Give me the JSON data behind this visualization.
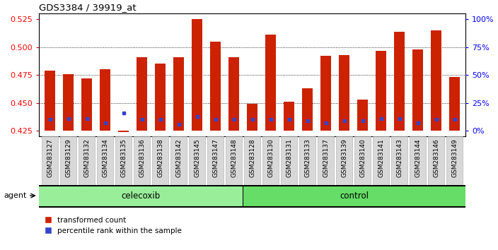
{
  "title": "GDS3384 / 39919_at",
  "samples": [
    "GSM283127",
    "GSM283129",
    "GSM283132",
    "GSM283134",
    "GSM283135",
    "GSM283136",
    "GSM283138",
    "GSM283142",
    "GSM283145",
    "GSM283147",
    "GSM283148",
    "GSM283128",
    "GSM283130",
    "GSM283131",
    "GSM283133",
    "GSM283137",
    "GSM283139",
    "GSM283140",
    "GSM283141",
    "GSM283143",
    "GSM283144",
    "GSM283146",
    "GSM283149"
  ],
  "bar_tops": [
    0.479,
    0.476,
    0.472,
    0.48,
    0.4235,
    0.491,
    0.485,
    0.491,
    0.525,
    0.505,
    0.491,
    0.449,
    0.511,
    0.451,
    0.463,
    0.492,
    0.493,
    0.453,
    0.497,
    0.514,
    0.498,
    0.515,
    0.473
  ],
  "blue_dots": [
    0.435,
    0.436,
    0.436,
    0.432,
    0.441,
    0.435,
    0.435,
    0.431,
    0.438,
    0.435,
    0.435,
    0.435,
    0.435,
    0.435,
    0.434,
    0.432,
    0.434,
    0.434,
    0.436,
    0.436,
    0.432,
    0.435,
    0.435
  ],
  "bar_base": 0.425,
  "ylim_left": [
    0.42,
    0.53
  ],
  "yticks_left": [
    0.425,
    0.45,
    0.475,
    0.5,
    0.525
  ],
  "yticks_right_vals": [
    0,
    25,
    50,
    75,
    100
  ],
  "ytick_labels_right": [
    "0%",
    "25%",
    "50%",
    "75%",
    "100%"
  ],
  "celecoxib_count": 11,
  "control_count": 12,
  "bar_color": "#cc2200",
  "dot_color": "#3344cc",
  "agent_label": "agent",
  "celecoxib_label": "celecoxib",
  "control_label": "control",
  "legend_red": "transformed count",
  "legend_blue": "percentile rank within the sample",
  "green_light": "#aaddaa",
  "green_dark": "#44cc44",
  "gray_box": "#d8d8d8"
}
